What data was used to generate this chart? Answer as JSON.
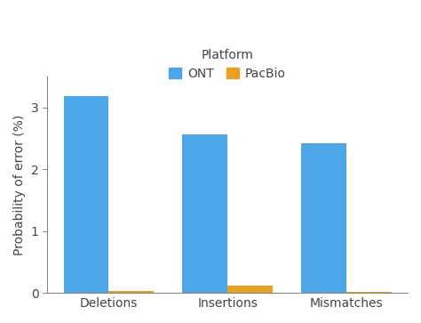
{
  "categories": [
    "Deletions",
    "Insertions",
    "Mismatches"
  ],
  "ont_values": [
    3.18,
    2.57,
    2.42
  ],
  "pacbio_values": [
    0.03,
    0.12,
    0.02
  ],
  "ont_color": "#4da6e8",
  "pacbio_color": "#e8a020",
  "ylabel": "Probability of error (%)",
  "legend_title": "Platform",
  "legend_labels": [
    "ONT",
    "PacBio"
  ],
  "ylim": [
    0,
    3.5
  ],
  "yticks": [
    0,
    1,
    2,
    3
  ],
  "bar_width": 0.38,
  "background_color": "#ffffff",
  "axis_fontsize": 10,
  "tick_fontsize": 10,
  "legend_fontsize": 10,
  "legend_title_fontsize": 10
}
